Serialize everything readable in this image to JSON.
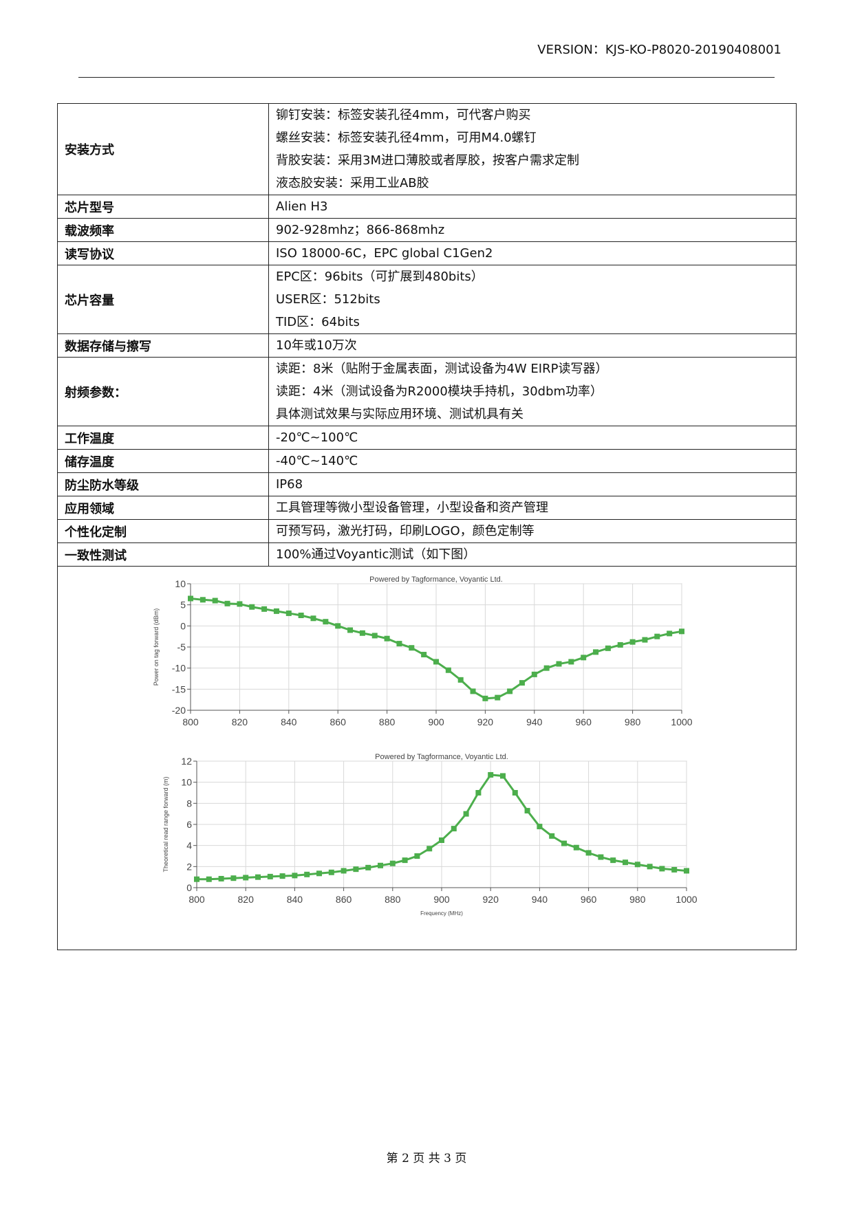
{
  "header": {
    "version": "VERSION：KJS-KO-P8020-20190408001"
  },
  "table": {
    "rows": [
      {
        "label": "安装方式",
        "lines": [
          "铆钉安装：标签安装孔径4mm，可代客户购买",
          "螺丝安装：标签安装孔径4mm，可用M4.0螺钉",
          "背胶安装：采用3M进口薄胶或者厚胶，按客户需求定制",
          "液态胶安装：采用工业AB胶"
        ]
      },
      {
        "label": "芯片型号",
        "lines": [
          "Alien H3"
        ]
      },
      {
        "label": "载波频率",
        "lines": [
          "902-928mhz；866-868mhz"
        ]
      },
      {
        "label": "读写协议",
        "lines": [
          "ISO 18000-6C，EPC global C1Gen2"
        ]
      },
      {
        "label": "芯片容量",
        "lines": [
          "EPC区：96bits（可扩展到480bits）",
          "USER区：512bits",
          "TID区：64bits"
        ]
      },
      {
        "label": "数据存储与擦写",
        "lines": [
          "10年或10万次"
        ]
      },
      {
        "label": "射频参数：",
        "lines": [
          "读距：8米（贴附于金属表面，测试设备为4W EIRP读写器）",
          "读距：4米（测试设备为R2000模块手持机，30dbm功率）",
          "具体测试效果与实际应用环境、测试机具有关"
        ]
      },
      {
        "label": "工作温度",
        "lines": [
          "-20℃~100℃"
        ]
      },
      {
        "label": "储存温度",
        "lines": [
          "-40℃~140℃"
        ]
      },
      {
        "label": "防尘防水等级",
        "lines": [
          "IP68"
        ]
      },
      {
        "label": "应用领域",
        "lines": [
          "工具管理等微小型设备管理，小型设备和资产管理"
        ]
      },
      {
        "label": "个性化定制",
        "lines": [
          "可预写码，激光打码，印刷LOGO，颜色定制等"
        ]
      },
      {
        "label": "一致性测试",
        "lines": [
          "100%通过Voyantic测试（如下图）"
        ]
      }
    ]
  },
  "chart_data": [
    {
      "type": "line",
      "title": "Powered by Tagformance, Voyantic Ltd.",
      "y_label": "Power on tag forward (dBm)",
      "x": [
        800,
        805,
        810,
        815,
        820,
        825,
        830,
        835,
        840,
        845,
        850,
        855,
        860,
        865,
        870,
        875,
        880,
        885,
        890,
        895,
        900,
        905,
        910,
        915,
        920,
        925,
        930,
        935,
        940,
        945,
        950,
        955,
        960,
        965,
        970,
        975,
        980,
        985,
        990,
        995,
        1000
      ],
      "series": [
        {
          "color": "#4cae4c",
          "values": [
            6.5,
            6.2,
            6,
            5.3,
            5.2,
            4.5,
            4,
            3.5,
            3,
            2.5,
            1.8,
            1,
            0,
            -1,
            -1.7,
            -2.3,
            -3,
            -4.2,
            -5.2,
            -6.8,
            -8.5,
            -10.5,
            -12.8,
            -15.5,
            -17.2,
            -17,
            -15.5,
            -13.5,
            -11.5,
            -10,
            -9,
            -8.5,
            -7.5,
            -6.2,
            -5.3,
            -4.5,
            -3.8,
            -3.3,
            -2.5,
            -1.8,
            -1.3
          ]
        }
      ],
      "xlim": [
        800,
        1000
      ],
      "xticks": [
        800,
        820,
        840,
        860,
        880,
        900,
        920,
        940,
        960,
        980,
        1000
      ],
      "ylim": [
        -20,
        10
      ],
      "yticks": [
        -20,
        -15,
        -10,
        -5,
        0,
        5,
        10
      ],
      "grid": true
    },
    {
      "type": "line",
      "title": "Powered by Tagformance, Voyantic Ltd.",
      "y_label": "Theoretical read range forward (m)",
      "x_label": "Frequency (MHz)",
      "x": [
        800,
        805,
        810,
        815,
        820,
        825,
        830,
        835,
        840,
        845,
        850,
        855,
        860,
        865,
        870,
        875,
        880,
        885,
        890,
        895,
        900,
        905,
        910,
        915,
        920,
        925,
        930,
        935,
        940,
        945,
        950,
        955,
        960,
        965,
        970,
        975,
        980,
        985,
        990,
        995,
        1000
      ],
      "series": [
        {
          "color": "#4cae4c",
          "values": [
            0.8,
            0.8,
            0.85,
            0.9,
            0.95,
            1,
            1.05,
            1.1,
            1.15,
            1.25,
            1.35,
            1.45,
            1.6,
            1.75,
            1.9,
            2.1,
            2.3,
            2.6,
            3,
            3.7,
            4.5,
            5.6,
            7,
            9,
            10.7,
            10.6,
            9,
            7.3,
            5.8,
            4.9,
            4.2,
            3.8,
            3.3,
            2.9,
            2.6,
            2.4,
            2.2,
            2,
            1.8,
            1.7,
            1.6
          ]
        }
      ],
      "xlim": [
        800,
        1000
      ],
      "xticks": [
        800,
        820,
        840,
        860,
        880,
        900,
        920,
        940,
        960,
        980,
        1000
      ],
      "ylim": [
        0,
        12
      ],
      "yticks": [
        0,
        2,
        4,
        6,
        8,
        10,
        12
      ],
      "grid": true
    }
  ],
  "footer": {
    "page": "第 2 页 共 3 页"
  }
}
